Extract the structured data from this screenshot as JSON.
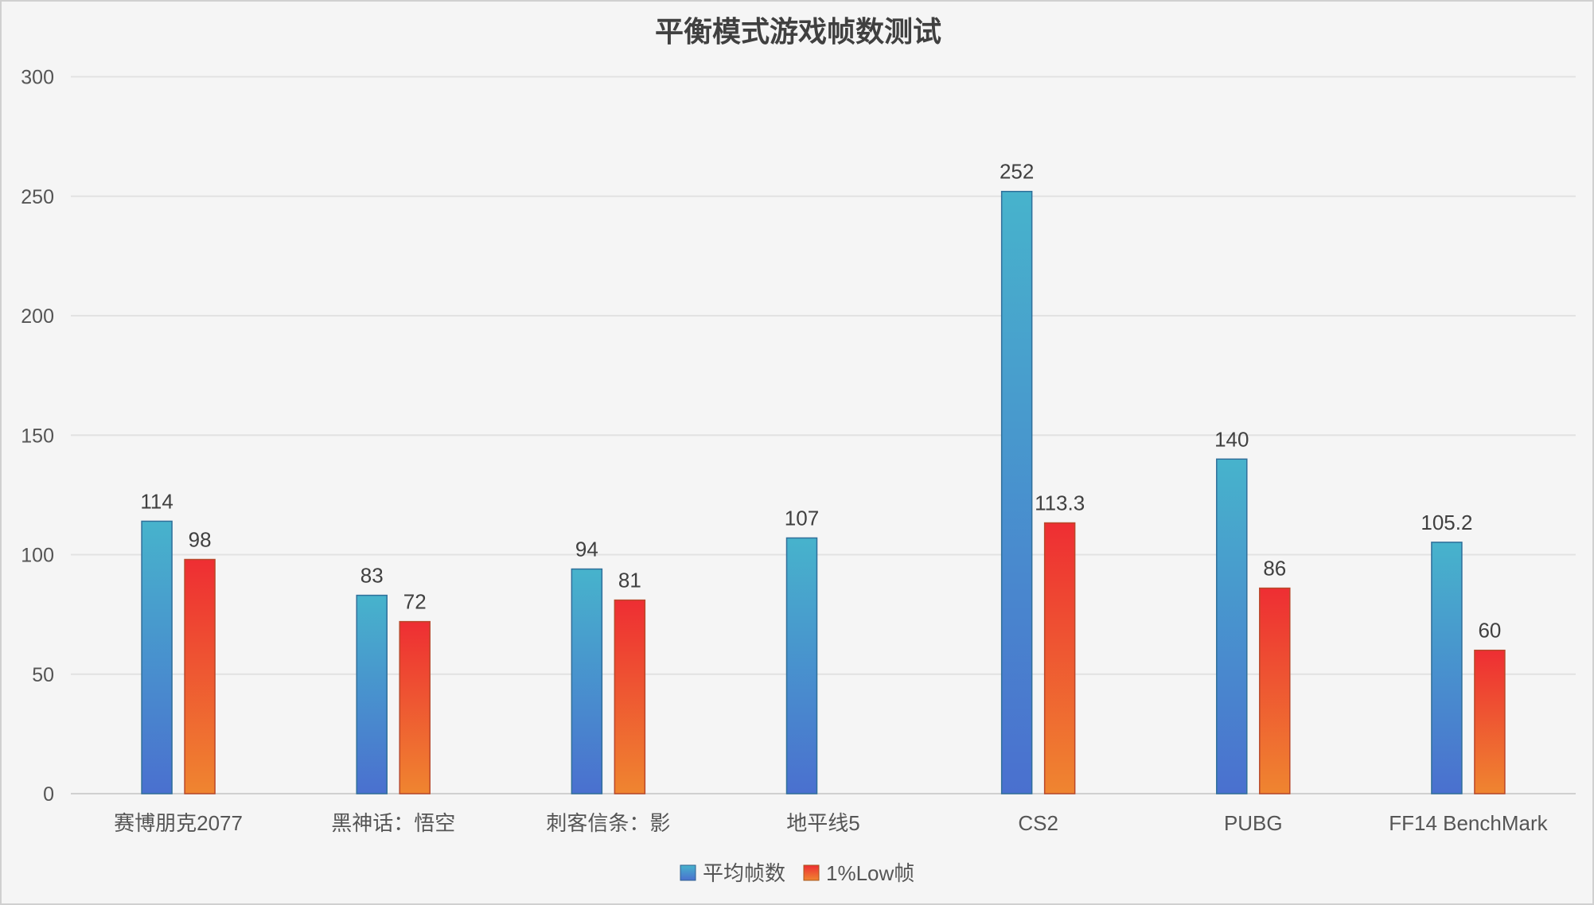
{
  "chart_data": {
    "type": "bar",
    "title": "平衡模式游戏帧数测试",
    "xlabel": "",
    "ylabel": "",
    "ylim": [
      0,
      300
    ],
    "yticks": [
      0,
      50,
      100,
      150,
      200,
      250,
      300
    ],
    "grid": true,
    "legend_position": "bottom",
    "categories": [
      "赛博朋克2077",
      "黑神话：悟空",
      "刺客信条：影",
      "地平线5",
      "CS2",
      "PUBG",
      "FF14 BenchMark"
    ],
    "series": [
      {
        "name": "平均帧数",
        "values": [
          114,
          83,
          94,
          107,
          252,
          140,
          105.2
        ],
        "colors": [
          "#47b3cc",
          "#4a70cf"
        ]
      },
      {
        "name": "1%Low帧",
        "values": [
          98,
          72,
          81,
          null,
          113.3,
          86,
          60
        ],
        "colors": [
          "#ee2e33",
          "#ef8530"
        ]
      }
    ]
  }
}
